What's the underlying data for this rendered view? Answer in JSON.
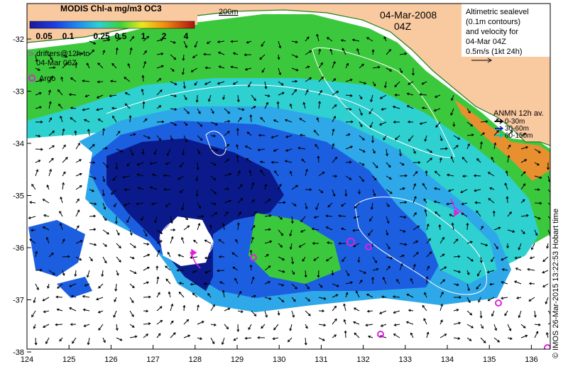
{
  "header": {
    "product": "MODIS Chl-a mg/m3 OC3",
    "date": "04-Mar-2008",
    "time": "04Z",
    "isobath_label": "200m"
  },
  "colorbar": {
    "tick_labels": [
      "0.05",
      "0.1",
      "0.25",
      "0.5",
      "1",
      "2",
      "4"
    ]
  },
  "legend_left": {
    "drifters_line1": "drifters@12h to",
    "drifters_line2": "04-Mar 06Z",
    "argo": "Argo"
  },
  "legend_right": {
    "line1": "Altimetric sealevel",
    "line2": "(0.1m contours)",
    "line3": "and velocity for",
    "line4": "04-Mar 04Z",
    "scale": "0.5m/s (1kt 24h)"
  },
  "anmn": {
    "title": "ANMN 12h av.",
    "items": [
      {
        "label": "0-30m",
        "color": "#000000"
      },
      {
        "label": "30-60m",
        "color": "#1f1fcc"
      },
      {
        "label": "60-150m",
        "color": "#00c8c8"
      }
    ]
  },
  "axes": {
    "x_ticks": [
      "124",
      "125",
      "126",
      "127",
      "128",
      "129",
      "130",
      "131",
      "132",
      "133",
      "134",
      "135",
      "136"
    ],
    "y_ticks": [
      "-32",
      "-33",
      "-34",
      "-35",
      "-36",
      "-37",
      "-38"
    ]
  },
  "credit": "© IMOS 26-Mar-2015 13:22:53 Hobart time",
  "colors": {
    "land": "#f9c9a0",
    "deep_blue": "#0a1a8a",
    "mid_blue": "#1c5ee0",
    "light_blue": "#2ea8e8",
    "cyan": "#2ed0d0",
    "green": "#3cc83c",
    "drifter": "#e020e0",
    "contour": "#ffffff"
  }
}
